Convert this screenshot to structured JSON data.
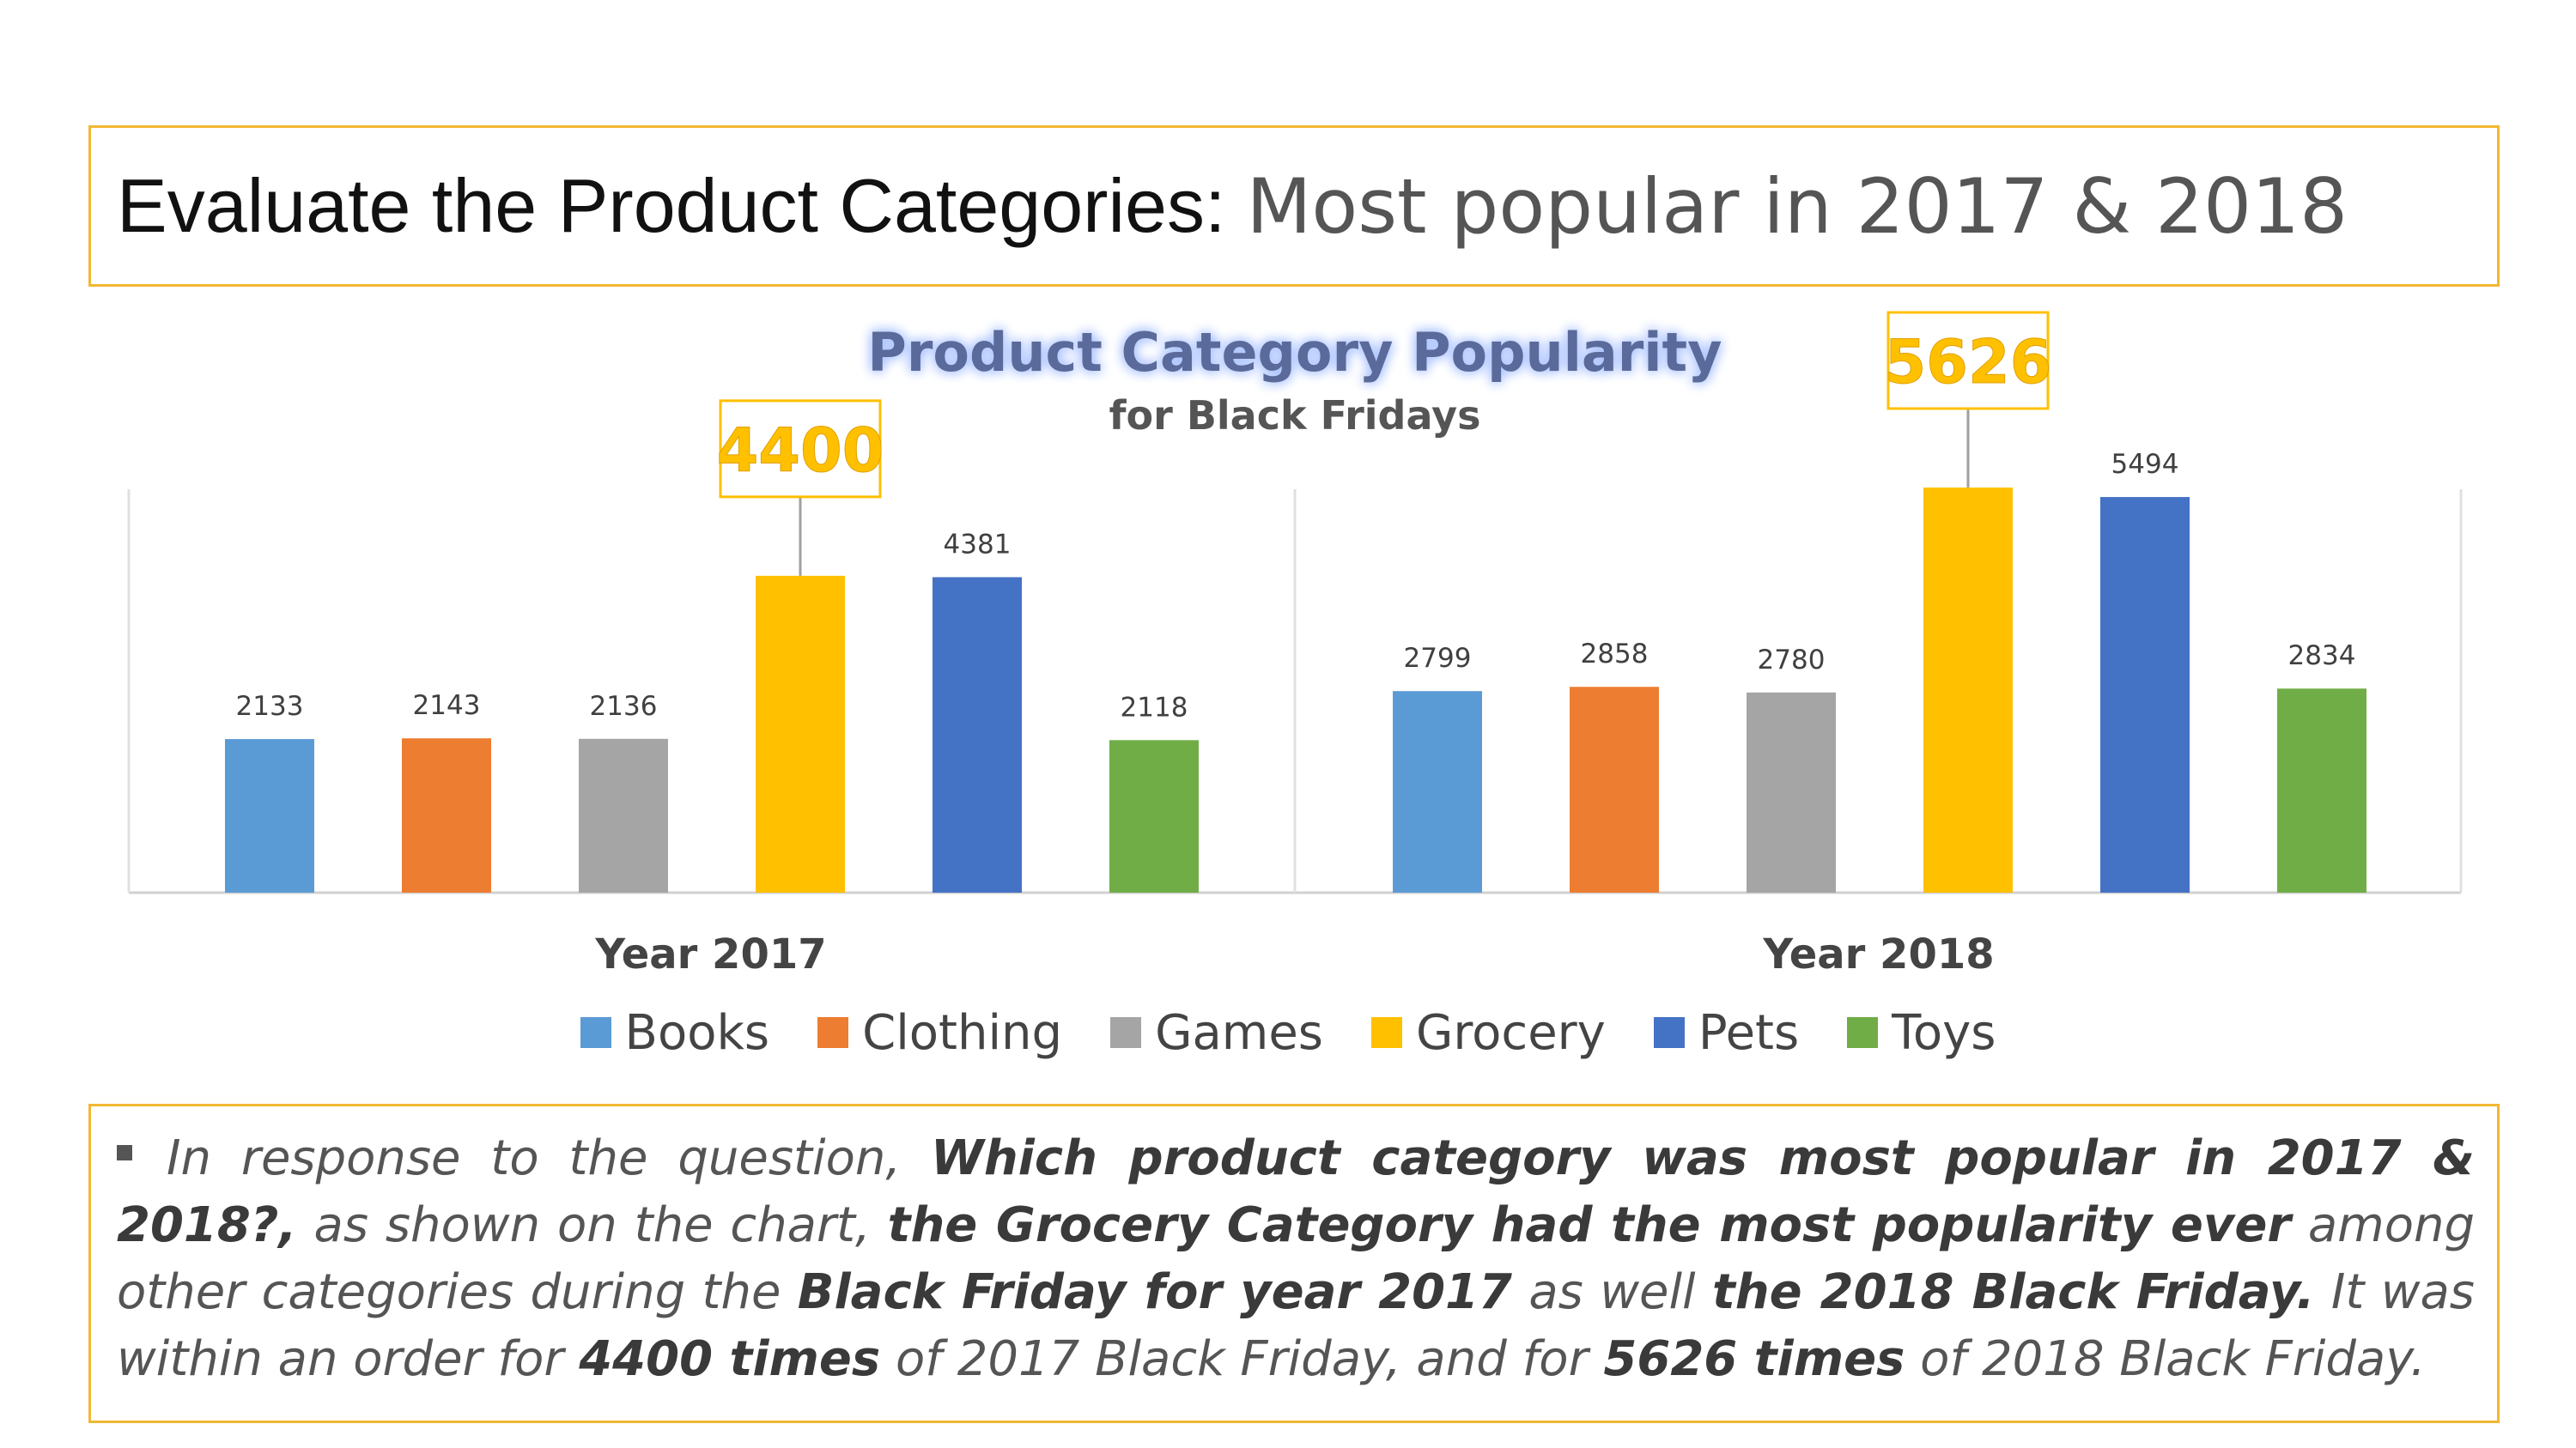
{
  "header": {
    "title_main": "Evaluate the Product Categories:",
    "title_sub": "Most popular in 2017 & 2018"
  },
  "chart_data": {
    "type": "bar",
    "title": "Product Category Popularity",
    "subtitle": "for Black Fridays",
    "categories": [
      "Year 2017",
      "Year 2018"
    ],
    "series": [
      {
        "name": "Books",
        "color": "#5b9bd5",
        "values": [
          2133,
          2799
        ]
      },
      {
        "name": "Clothing",
        "color": "#ed7d31",
        "values": [
          2143,
          2858
        ]
      },
      {
        "name": "Games",
        "color": "#a5a5a5",
        "values": [
          2136,
          2780
        ]
      },
      {
        "name": "Grocery",
        "color": "#ffc000",
        "values": [
          4400,
          5626
        ]
      },
      {
        "name": "Pets",
        "color": "#4472c4",
        "values": [
          4381,
          5494
        ]
      },
      {
        "name": "Toys",
        "color": "#70ad47",
        "values": [
          2118,
          2834
        ]
      }
    ],
    "highlight_series": "Grocery",
    "ylim": [
      0,
      6000
    ],
    "grid": false,
    "legend": "bottom",
    "colors": {
      "highlight": "#ffc000",
      "title": "#5a6a9a",
      "subtitle": "#555555"
    }
  },
  "note": {
    "p1": "In response to the question, ",
    "b1": "Which product category was most popular in 2017 & 2018?,",
    "p2": " as shown on the chart, ",
    "b2": "the Grocery Category had the most popularity ever",
    "p3": " among other categories during the ",
    "b3": "Black Friday for year 2017",
    "p4": " as well ",
    "b4": "the 2018 Black Friday.",
    "p5": " It was within an order for ",
    "b5": "4400 times",
    "p6": " of 2017 Black Friday, and for ",
    "b6": "5626 times",
    "p7": " of 2018 Black Friday."
  }
}
